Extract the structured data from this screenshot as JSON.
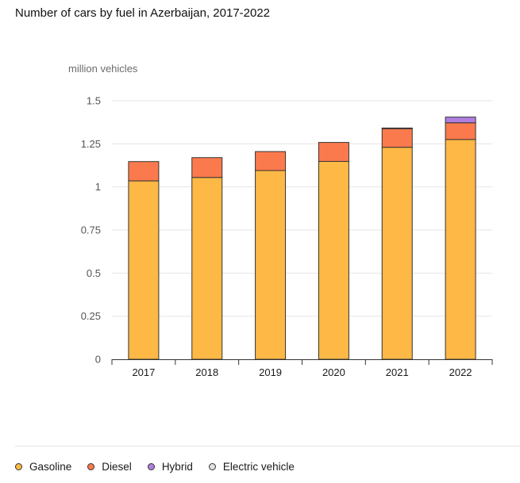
{
  "title": "Number of cars by fuel in Azerbaijan, 2017-2022",
  "unit_label": "million vehicles",
  "chart_data": {
    "type": "bar",
    "stacked": true,
    "title": "Number of cars by fuel in Azerbaijan, 2017-2022",
    "ylabel": "million vehicles",
    "xlabel": "",
    "categories": [
      "2017",
      "2018",
      "2019",
      "2020",
      "2021",
      "2022"
    ],
    "ylim": [
      0,
      1.5
    ],
    "yticks": [
      0,
      0.25,
      0.5,
      0.75,
      1,
      1.25,
      1.5
    ],
    "ytick_labels": [
      "0",
      "0.25",
      "0.5",
      "0.75",
      "1",
      "1.25",
      "1.5"
    ],
    "grid": true,
    "legend_position": "bottom",
    "series": [
      {
        "name": "Gasoline",
        "color": "#FDB845",
        "values": [
          1.035,
          1.055,
          1.095,
          1.148,
          1.23,
          1.275
        ]
      },
      {
        "name": "Diesel",
        "color": "#FB7A4D",
        "values": [
          0.112,
          0.115,
          0.11,
          0.11,
          0.108,
          0.097
        ]
      },
      {
        "name": "Hybrid",
        "color": "#B07FE0",
        "values": [
          0.0,
          0.0,
          0.0,
          0.0,
          0.001,
          0.033
        ]
      },
      {
        "name": "Electric vehicle",
        "color": "#E2E2E2",
        "values": [
          0,
          0,
          0,
          0,
          0,
          0
        ]
      }
    ]
  }
}
